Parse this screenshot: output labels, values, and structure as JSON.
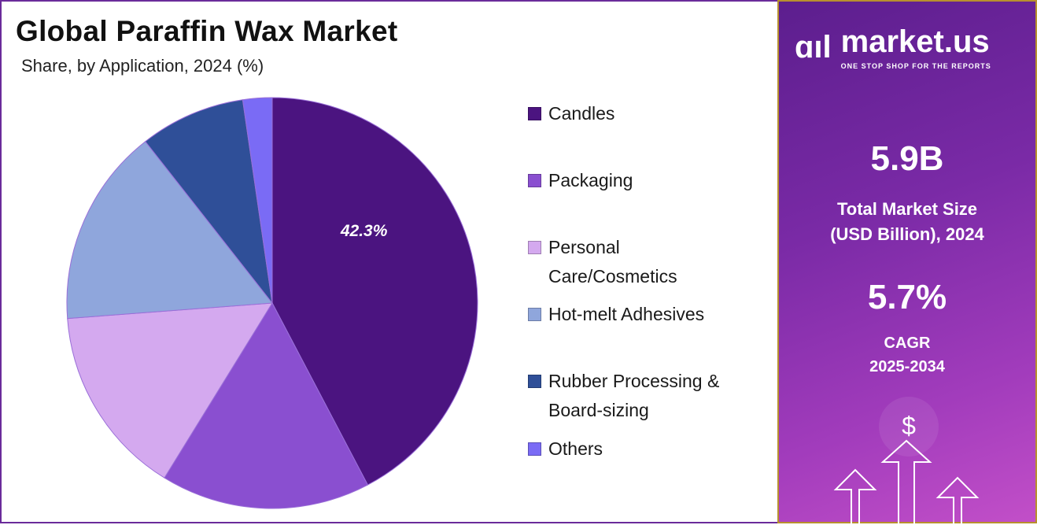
{
  "title": "Global Paraffin Wax Market",
  "subtitle": "Share, by Application, 2024 (%)",
  "chart_data": {
    "type": "pie",
    "title": "Global Paraffin Wax Market",
    "subtitle": "Share, by Application, 2024 (%)",
    "start_angle": "12 o'clock, clockwise",
    "legend_position": "right",
    "categories": [
      "Candles",
      "Packaging",
      "Personal Care/Cosmetics",
      "Hot-melt Adhesives",
      "Rubber Processing & Board-sizing",
      "Others"
    ],
    "values": [
      42.3,
      16.5,
      15.0,
      15.6,
      8.3,
      2.3
    ],
    "colors": [
      "#4b1480",
      "#8a4fd0",
      "#d4a9ef",
      "#8fa6dc",
      "#2f4f98",
      "#7a6bf5"
    ],
    "data_labels": [
      "42.3%",
      "",
      "",
      "",
      "",
      ""
    ]
  },
  "legend": [
    {
      "line1": "Candles",
      "line2": ""
    },
    {
      "line1": "Packaging",
      "line2": ""
    },
    {
      "line1": "Personal",
      "line2": "Care/Cosmetics"
    },
    {
      "line1": "Hot-melt Adhesives",
      "line2": ""
    },
    {
      "line1": "Rubber Processing &",
      "line2": "Board-sizing"
    },
    {
      "line1": "Others",
      "line2": ""
    }
  ],
  "panel": {
    "brand": "market.us",
    "tagline": "ONE STOP SHOP FOR THE REPORTS",
    "market_size": "5.9B",
    "market_size_label1": "Total Market Size",
    "market_size_label2": "(USD Billion), 2024",
    "cagr": "5.7%",
    "cagr_label1": "CAGR",
    "cagr_label2": "2025-2034",
    "dollar": "$"
  }
}
